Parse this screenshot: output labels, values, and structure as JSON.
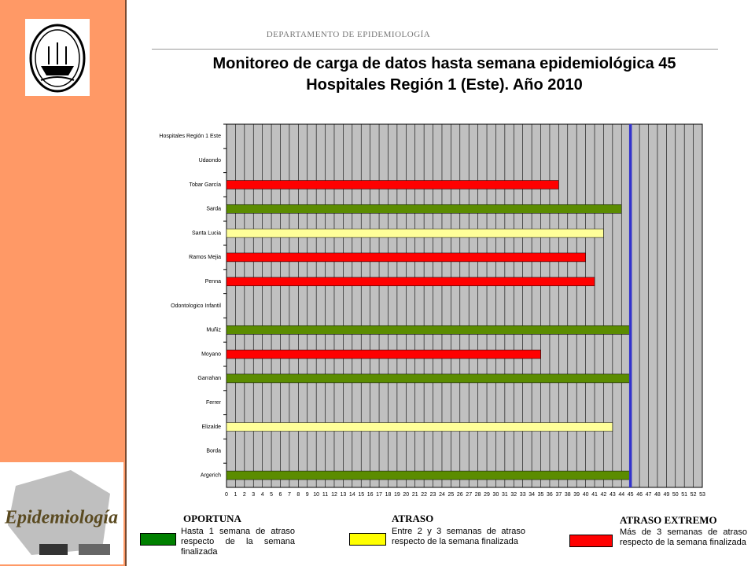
{
  "header": "DEPARTAMENTO  DE EPIDEMIOLOGÍA",
  "logo_text": "Epidemiología",
  "chart_data": {
    "type": "bar",
    "orientation": "horizontal",
    "title": [
      "Monitoreo de carga de datos hasta semana epidemiológica 45",
      "Hospitales Región 1 (Este). Año 2010"
    ],
    "categories": [
      "Hospitales Región 1  Este",
      "Udaondo",
      "Tobar García",
      "Sarda",
      "Santa Lucia",
      "Ramos Mejia",
      "Penna",
      "Odontologico Infantil",
      "Muñiz",
      "Moyano",
      "Garrahan",
      "Ferrer",
      "Elizalde",
      "Borda",
      "Argerich"
    ],
    "values": [
      null,
      null,
      37,
      44,
      42,
      40,
      41,
      null,
      45,
      35,
      45,
      null,
      43,
      null,
      45
    ],
    "colors": [
      null,
      null,
      "#ff0000",
      "#5b8c00",
      "#ffff99",
      "#ff0000",
      "#ff0000",
      null,
      "#5b8c00",
      "#ff0000",
      "#5b8c00",
      null,
      "#ffff99",
      null,
      "#5b8c00"
    ],
    "xlim": [
      0,
      53
    ],
    "xticks": [
      0,
      1,
      2,
      3,
      4,
      5,
      6,
      7,
      8,
      9,
      10,
      11,
      12,
      13,
      14,
      15,
      16,
      17,
      18,
      19,
      20,
      21,
      22,
      23,
      24,
      25,
      26,
      27,
      28,
      29,
      30,
      31,
      32,
      33,
      34,
      35,
      36,
      37,
      38,
      39,
      40,
      41,
      42,
      43,
      44,
      45,
      46,
      47,
      48,
      49,
      50,
      51,
      52,
      53
    ],
    "grid": true,
    "background": "#c0c0c0",
    "reference_line": {
      "value": 45,
      "color": "#3333cc"
    },
    "legend": [
      {
        "label": "OPORTUNA",
        "description": "Hasta 1 semana de atraso respecto de la semana finalizada",
        "color": "#008000"
      },
      {
        "label": "ATRASO",
        "description": "Entre 2 y 3 semanas de atraso respecto de la semana finalizada",
        "color": "#ffff00"
      },
      {
        "label": "ATRASO EXTREMO",
        "description": "Más de 3 semanas de atraso respecto de la semana finalizada",
        "color": "#ff0000"
      }
    ]
  }
}
